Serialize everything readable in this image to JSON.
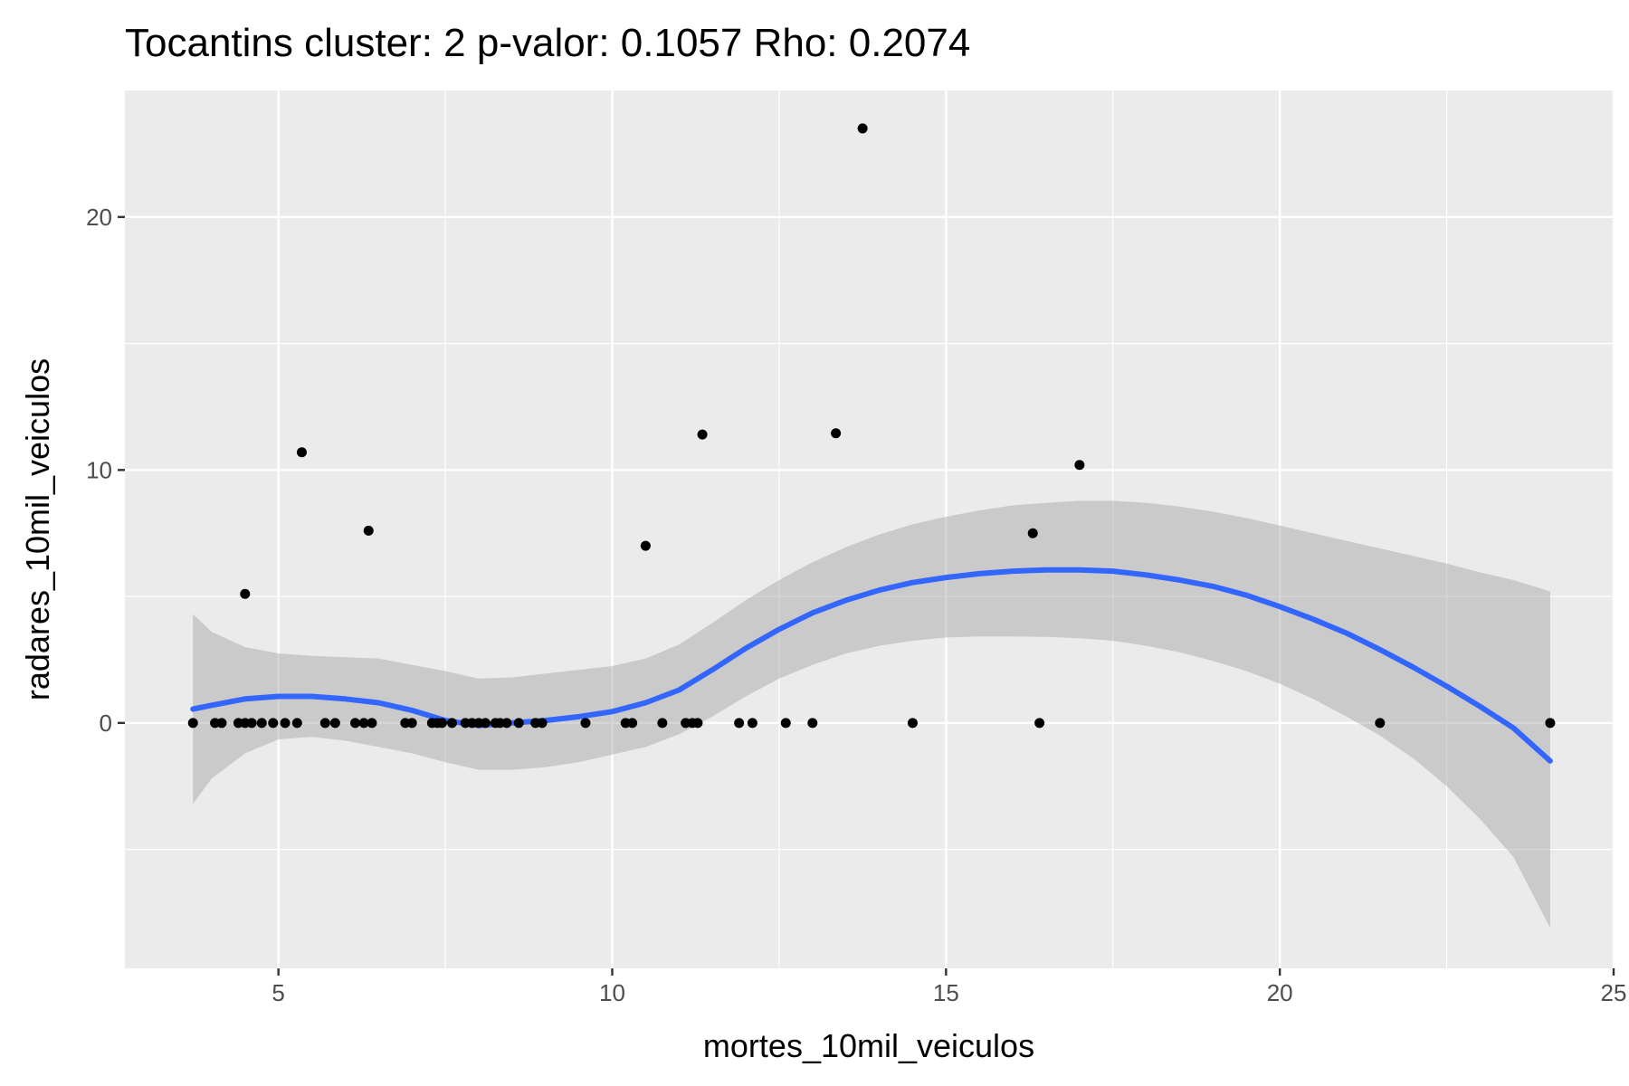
{
  "chart_data": {
    "type": "scatter",
    "title": "Tocantins cluster: 2 p-valor: 0.1057 Rho: 0.2074",
    "xlabel": "mortes_10mil_veiculos",
    "ylabel": "radares_10mil_veiculos",
    "xlim": [
      2.7,
      25
    ],
    "ylim": [
      -9.7,
      25.0
    ],
    "x_ticks": [
      5,
      10,
      15,
      20,
      25
    ],
    "y_ticks": [
      0,
      10,
      20
    ],
    "x_minor_ticks": [
      2.5,
      7.5,
      12.5,
      17.5,
      22.5
    ],
    "y_minor_ticks": [
      -5,
      5,
      15
    ],
    "grid": true,
    "colors": {
      "panel": "#ebebeb",
      "smooth_line": "#3366ff",
      "ribbon": "#999999",
      "points": "#000000"
    },
    "points": [
      {
        "x": 3.72,
        "y": 0
      },
      {
        "x": 4.05,
        "y": 0
      },
      {
        "x": 4.15,
        "y": 0
      },
      {
        "x": 4.4,
        "y": 0
      },
      {
        "x": 4.5,
        "y": 0
      },
      {
        "x": 4.5,
        "y": 5.1
      },
      {
        "x": 4.6,
        "y": 0
      },
      {
        "x": 4.75,
        "y": 0
      },
      {
        "x": 4.92,
        "y": 0
      },
      {
        "x": 5.1,
        "y": 0
      },
      {
        "x": 5.28,
        "y": 0
      },
      {
        "x": 5.35,
        "y": 10.7
      },
      {
        "x": 5.7,
        "y": 0
      },
      {
        "x": 5.85,
        "y": 0
      },
      {
        "x": 6.15,
        "y": 0
      },
      {
        "x": 6.28,
        "y": 0
      },
      {
        "x": 6.35,
        "y": 7.6
      },
      {
        "x": 6.4,
        "y": 0
      },
      {
        "x": 6.9,
        "y": 0
      },
      {
        "x": 7.0,
        "y": 0
      },
      {
        "x": 7.3,
        "y": 0
      },
      {
        "x": 7.38,
        "y": 0
      },
      {
        "x": 7.45,
        "y": 0
      },
      {
        "x": 7.6,
        "y": 0
      },
      {
        "x": 7.8,
        "y": 0
      },
      {
        "x": 7.9,
        "y": 0
      },
      {
        "x": 8.0,
        "y": 0
      },
      {
        "x": 8.1,
        "y": 0
      },
      {
        "x": 8.25,
        "y": 0
      },
      {
        "x": 8.32,
        "y": 0
      },
      {
        "x": 8.42,
        "y": 0
      },
      {
        "x": 8.6,
        "y": 0
      },
      {
        "x": 8.85,
        "y": 0
      },
      {
        "x": 8.95,
        "y": 0
      },
      {
        "x": 9.6,
        "y": 0
      },
      {
        "x": 10.2,
        "y": 0
      },
      {
        "x": 10.3,
        "y": 0
      },
      {
        "x": 10.5,
        "y": 7.0
      },
      {
        "x": 10.75,
        "y": 0
      },
      {
        "x": 11.1,
        "y": 0
      },
      {
        "x": 11.2,
        "y": 0
      },
      {
        "x": 11.28,
        "y": 0
      },
      {
        "x": 11.35,
        "y": 11.4
      },
      {
        "x": 11.9,
        "y": 0
      },
      {
        "x": 12.1,
        "y": 0
      },
      {
        "x": 12.6,
        "y": 0
      },
      {
        "x": 13.0,
        "y": 0
      },
      {
        "x": 13.35,
        "y": 11.45
      },
      {
        "x": 13.75,
        "y": 23.5
      },
      {
        "x": 14.5,
        "y": 0
      },
      {
        "x": 16.3,
        "y": 7.5
      },
      {
        "x": 16.4,
        "y": 0
      },
      {
        "x": 17.0,
        "y": 10.2
      },
      {
        "x": 21.5,
        "y": 0
      },
      {
        "x": 24.05,
        "y": 0
      }
    ],
    "smooth": {
      "x": [
        3.72,
        4.0,
        4.5,
        5.0,
        5.5,
        6.0,
        6.5,
        7.0,
        7.5,
        8.0,
        8.5,
        9.0,
        9.5,
        10.0,
        10.5,
        11.0,
        11.5,
        12.0,
        12.5,
        13.0,
        13.5,
        14.0,
        14.5,
        15.0,
        15.5,
        16.0,
        16.5,
        17.0,
        17.5,
        18.0,
        18.5,
        19.0,
        19.5,
        20.0,
        20.5,
        21.0,
        21.5,
        22.0,
        22.5,
        23.0,
        23.5,
        24.05
      ],
      "y": [
        0.55,
        0.7,
        0.95,
        1.05,
        1.05,
        0.95,
        0.8,
        0.5,
        0.1,
        -0.1,
        0.0,
        0.1,
        0.25,
        0.45,
        0.8,
        1.3,
        2.1,
        2.95,
        3.7,
        4.35,
        4.85,
        5.25,
        5.55,
        5.75,
        5.9,
        6.0,
        6.05,
        6.05,
        6.0,
        5.85,
        5.65,
        5.4,
        5.05,
        4.6,
        4.1,
        3.55,
        2.9,
        2.2,
        1.45,
        0.65,
        -0.2,
        -1.5
      ],
      "lower": [
        -3.2,
        -2.2,
        -1.2,
        -0.65,
        -0.55,
        -0.7,
        -0.95,
        -1.2,
        -1.55,
        -1.85,
        -1.85,
        -1.75,
        -1.55,
        -1.25,
        -0.95,
        -0.45,
        0.25,
        1.05,
        1.75,
        2.3,
        2.75,
        3.05,
        3.25,
        3.38,
        3.42,
        3.42,
        3.4,
        3.35,
        3.25,
        3.05,
        2.8,
        2.45,
        2.05,
        1.55,
        0.95,
        0.25,
        -0.5,
        -1.4,
        -2.5,
        -3.8,
        -5.3,
        -8.1
      ],
      "upper": [
        4.3,
        3.6,
        3.0,
        2.75,
        2.65,
        2.6,
        2.55,
        2.3,
        2.05,
        1.75,
        1.8,
        1.95,
        2.1,
        2.25,
        2.55,
        3.1,
        3.95,
        4.85,
        5.65,
        6.35,
        6.95,
        7.45,
        7.85,
        8.15,
        8.4,
        8.6,
        8.7,
        8.78,
        8.78,
        8.7,
        8.55,
        8.35,
        8.1,
        7.8,
        7.5,
        7.2,
        6.9,
        6.6,
        6.3,
        5.95,
        5.65,
        5.2
      ]
    }
  }
}
